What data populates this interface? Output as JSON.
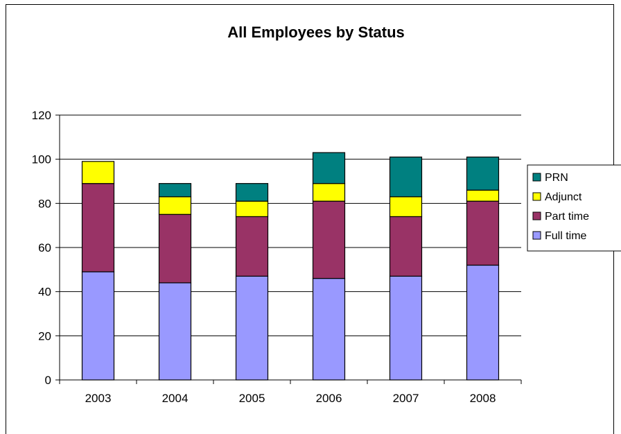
{
  "chart_data": {
    "type": "bar",
    "stacked": true,
    "title": "All Employees by Status",
    "xlabel": "",
    "ylabel": "",
    "ylim": [
      0,
      120
    ],
    "yticks": [
      0,
      20,
      40,
      60,
      80,
      100,
      120
    ],
    "categories": [
      "2003",
      "2004",
      "2005",
      "2006",
      "2007",
      "2008"
    ],
    "series": [
      {
        "name": "Full time",
        "color": "#9999ff",
        "values": [
          49,
          44,
          47,
          46,
          47,
          52
        ]
      },
      {
        "name": "Part time",
        "color": "#993366",
        "values": [
          40,
          31,
          27,
          35,
          27,
          29
        ]
      },
      {
        "name": "Adjunct",
        "color": "#ffff00",
        "values": [
          10,
          8,
          7,
          8,
          9,
          5
        ]
      },
      {
        "name": "PRN",
        "color": "#008080",
        "values": [
          0,
          6,
          8,
          14,
          18,
          15
        ]
      }
    ],
    "legend": {
      "position": "right",
      "order": [
        "PRN",
        "Adjunct",
        "Part time",
        "Full time"
      ]
    },
    "grid": true
  }
}
